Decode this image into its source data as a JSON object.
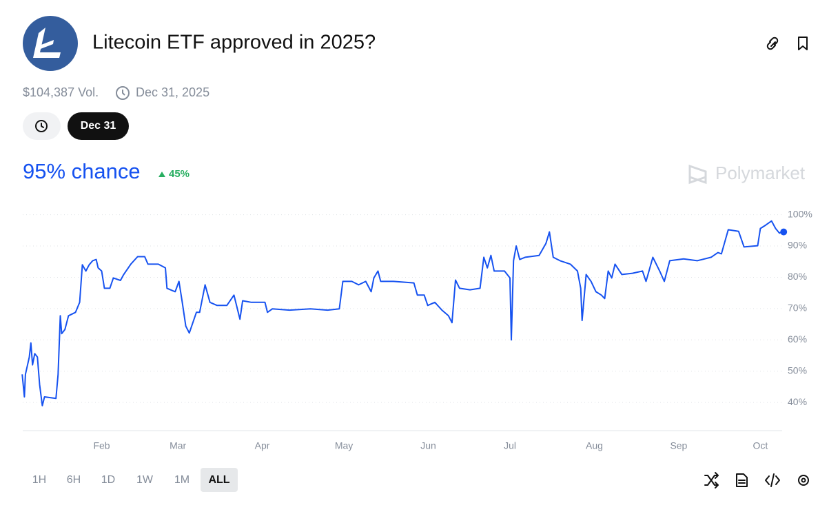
{
  "header": {
    "title": "Litecoin ETF approved in 2025?",
    "volume": "$104,387 Vol.",
    "end_date": "Dec 31, 2025",
    "date_button": "Dec 31"
  },
  "probability": {
    "chance": "95% chance",
    "change": "45%"
  },
  "brand": "Polymarket",
  "range_buttons": [
    "1H",
    "6H",
    "1D",
    "1W",
    "1M",
    "ALL"
  ],
  "chart_data": {
    "type": "line",
    "color": "#1652f0",
    "grid": true,
    "x": [
      2.8,
      3.6,
      4,
      5.4,
      6,
      6.6,
      7.4,
      8.4,
      9.2,
      10.2,
      11,
      15.2,
      16,
      16.8,
      17.3,
      18.5,
      19.8,
      22.4,
      23.9,
      24.9,
      26.2,
      27.4,
      28.7,
      30,
      30.7,
      32,
      33,
      35,
      36.3,
      38.9,
      40.1,
      42.7,
      45.2,
      47.8,
      49,
      52.8,
      55.4,
      56,
      59,
      60.4,
      61.6,
      62.9,
      64.2,
      66.8,
      68,
      70,
      71.8,
      74.4,
      78,
      80.6,
      82.8,
      83.8,
      87,
      92,
      92.9,
      94.7,
      101,
      108.7,
      115,
      119.3,
      120.6,
      123.9,
      126.4,
      129,
      131,
      132,
      133.5,
      134.5,
      139.2,
      146.7,
      148,
      150.5,
      151.8,
      154.4,
      157,
      159.4,
      160.7,
      162,
      163.5,
      167.3,
      171,
      172.4,
      173.7,
      175,
      176.2,
      180,
      182,
      182.5,
      183.3,
      184.3,
      185.6,
      187.6,
      192.7,
      195.2,
      196.5,
      197.9,
      200.4,
      204.2,
      206.8,
      208,
      208.5,
      210,
      211.8,
      213.6,
      215.6,
      216.8,
      218.1,
      219.4,
      220.6,
      223.1,
      227,
      230.7,
      232,
      234.5,
      237,
      238.7,
      240.7,
      245.8,
      250.8,
      255.9,
      258.4,
      259.7,
      262.2,
      266,
      268,
      273,
      274,
      276,
      278.1,
      279.6,
      281,
      281.8
    ],
    "values": [
      49,
      41.8,
      49,
      54.5,
      59,
      52,
      55.6,
      54.5,
      45.7,
      39,
      41.8,
      41.3,
      49,
      67.7,
      62,
      63.3,
      67.7,
      68.8,
      72,
      84,
      82,
      84,
      85.3,
      85.7,
      83,
      82,
      76.5,
      76.5,
      79.8,
      79,
      80.9,
      84.2,
      86.6,
      86.6,
      84.2,
      84.2,
      83,
      76.5,
      75.4,
      78.7,
      72,
      64.4,
      62.2,
      68.8,
      68.8,
      77.6,
      72,
      71,
      71,
      74.3,
      66.6,
      72.5,
      72,
      72,
      68.8,
      69.9,
      69.5,
      69.9,
      69.5,
      69.9,
      78.7,
      78.7,
      77.6,
      78.7,
      75.4,
      79.8,
      82,
      78.7,
      78.7,
      78.2,
      74.3,
      74.3,
      71,
      72,
      69.5,
      67.7,
      65.5,
      79.1,
      76.5,
      76,
      76.5,
      86.4,
      83,
      87,
      82,
      82,
      79.8,
      60,
      85.3,
      90,
      85.7,
      86.4,
      87,
      90.8,
      94.5,
      86.4,
      85.3,
      84.2,
      82,
      76.5,
      66.2,
      80.9,
      78.7,
      75.4,
      74.3,
      73.2,
      82,
      79.8,
      84.2,
      80.9,
      81.3,
      82,
      78.7,
      86.4,
      82,
      78.7,
      85.3,
      85.9,
      85.3,
      86.4,
      87.9,
      87.5,
      95.2,
      94.7,
      89.7,
      90.1,
      95.6,
      96.7,
      98,
      95.6,
      94.1,
      94.5
    ],
    "xlim": [
      3,
      282
    ],
    "xticks": [
      {
        "value": 32,
        "label": "Feb"
      },
      {
        "value": 60,
        "label": "Mar"
      },
      {
        "value": 91,
        "label": "Apr"
      },
      {
        "value": 121,
        "label": "May"
      },
      {
        "value": 152,
        "label": "Jun"
      },
      {
        "value": 182,
        "label": "Jul"
      },
      {
        "value": 213,
        "label": "Aug"
      },
      {
        "value": 244,
        "label": "Sep"
      },
      {
        "value": 274,
        "label": "Oct"
      }
    ],
    "ylim": [
      31,
      103
    ],
    "yticks": [
      {
        "value": 40,
        "label": "40%"
      },
      {
        "value": 50,
        "label": "50%"
      },
      {
        "value": 60,
        "label": "60%"
      },
      {
        "value": 70,
        "label": "70%"
      },
      {
        "value": 80,
        "label": "80%"
      },
      {
        "value": 90,
        "label": "90%"
      },
      {
        "value": 100,
        "label": "100%"
      }
    ]
  }
}
